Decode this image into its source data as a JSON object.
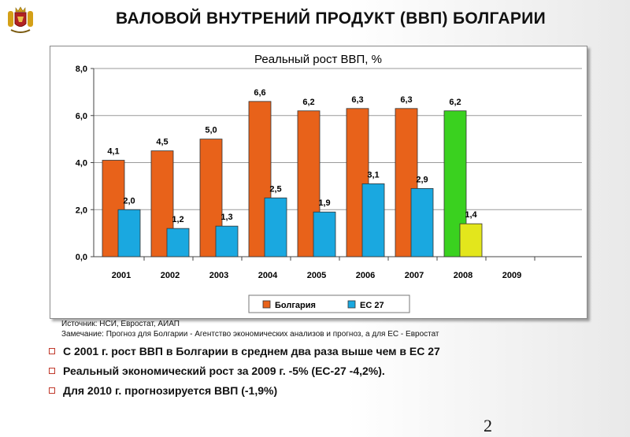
{
  "slide": {
    "title": "ВАЛОВОЙ ВНУТРЕНИЙ ПРОДУКТ (ВВП) БОЛГАРИИ",
    "page_number": "2"
  },
  "notes": {
    "source": "Источник: НСИ, Евростат, АИАП",
    "remark": "Замечание: Прогноз для Болгарии - Агентство экономических  анализов и прогноз, а для ЕС - Евростат"
  },
  "bullets": [
    "С  2001 г. рост ВВП в Болгарии в среднем два раза выше чем в ЕС 27",
    "Реальный экономический рост за 2009 г. -5% (ЕС-27 -4,2%).",
    "Для 2010 г. прогнозируется ВВП (-1,9%)"
  ],
  "colors": {
    "bulgaria": "#e8621a",
    "eu27": "#1aa8e0",
    "bulgaria_forecast": "#3ad11f",
    "eu27_forecast": "#e3e61c",
    "bullet_mark": "#c0392b"
  },
  "chart_data": {
    "type": "bar",
    "title": "Реальный рост ВВП, %",
    "categories": [
      "2001",
      "2002",
      "2003",
      "2004",
      "2005",
      "2006",
      "2007",
      "2008",
      "2009"
    ],
    "series": [
      {
        "name": "Болгария",
        "values": [
          4.1,
          4.5,
          5.0,
          6.6,
          6.2,
          6.3,
          6.3,
          6.2,
          null
        ],
        "labels": [
          "4,1",
          "4,5",
          "5,0",
          "6,6",
          "6,2",
          "6,3",
          "6,3",
          "6,2",
          ""
        ]
      },
      {
        "name": "ЕС 27",
        "values": [
          2.0,
          1.2,
          1.3,
          2.5,
          1.9,
          3.1,
          2.9,
          1.4,
          null
        ],
        "labels": [
          "2,0",
          "1,2",
          "1,3",
          "2,5",
          "1,9",
          "3,1",
          "2,9",
          "1,4",
          ""
        ]
      }
    ],
    "ylim": [
      0,
      8
    ],
    "yticks": [
      "0,0",
      "2,0",
      "4,0",
      "6,0",
      "8,0"
    ],
    "grid": true,
    "legend_position": "bottom"
  }
}
